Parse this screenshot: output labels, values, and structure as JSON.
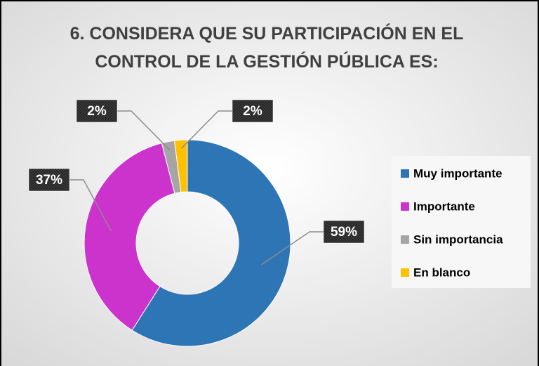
{
  "chart_data": {
    "type": "donut",
    "title": "6. CONSIDERA QUE SU PARTICIPACIÓN EN EL CONTROL DE LA GESTIÓN PÚBLICA ES:",
    "series": [
      {
        "name": "Muy importante",
        "color": "#2e75b6",
        "values": [
          59
        ],
        "value_labels": [
          "59%"
        ]
      },
      {
        "name": "Importante",
        "color": "#cc33cc",
        "values": [
          37
        ],
        "value_labels": [
          "37%"
        ]
      },
      {
        "name": "Sin importancia",
        "color": "#a5a5a5",
        "values": [
          2
        ],
        "value_labels": [
          "2%"
        ]
      },
      {
        "name": "En blanco",
        "color": "#ffc000",
        "values": [
          2
        ],
        "value_labels": [
          "2%"
        ]
      }
    ],
    "legend": "right"
  }
}
